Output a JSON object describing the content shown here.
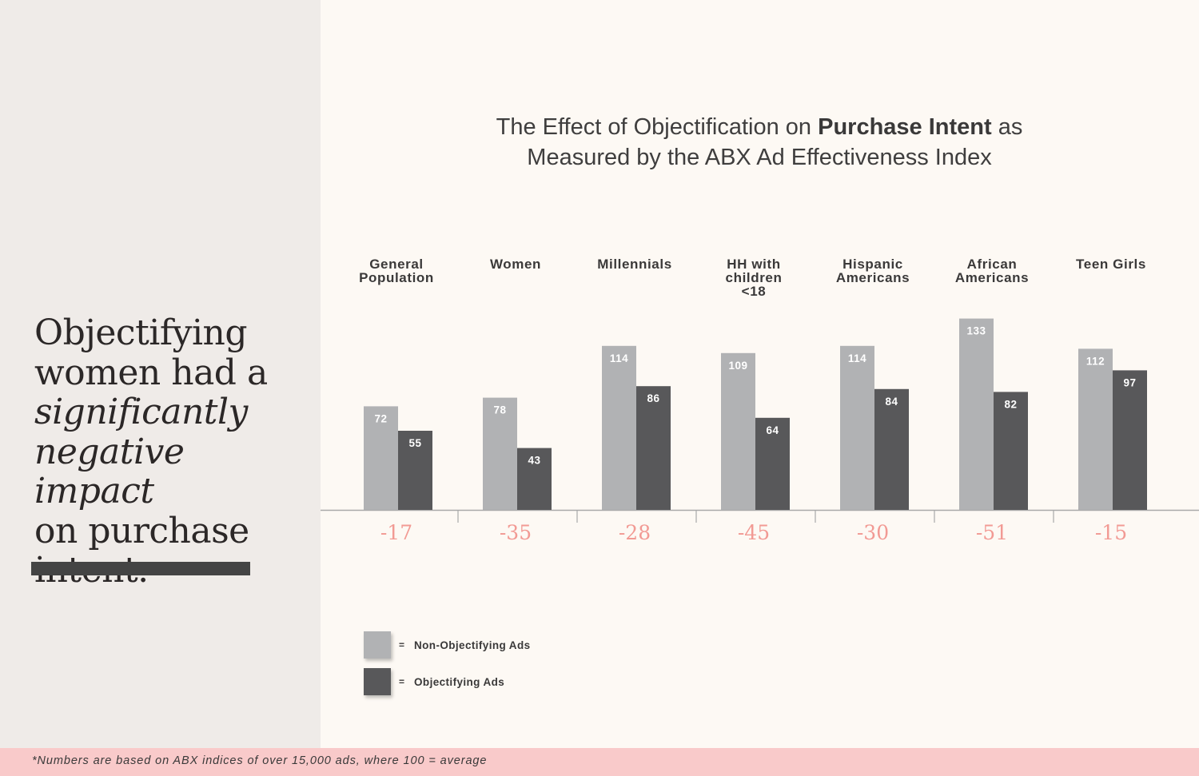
{
  "left_panel": {
    "headline_parts": [
      {
        "text": "Objectifying women had a ",
        "italic": false
      },
      {
        "text": "significantly negative impact",
        "italic": true
      },
      {
        "text": " on purchase intent.",
        "italic": false
      }
    ],
    "line1": "Objectifying",
    "line2": "women had a",
    "line3": "significantly",
    "line4": "negative impact",
    "line5": "on purchase",
    "line6": "intent."
  },
  "colors": {
    "non_objectifying": "#b1b2b4",
    "objectifying": "#58585a",
    "difference": "#f29a94",
    "axis": "#a9a9a9"
  },
  "chart_data": {
    "type": "bar",
    "title_line1_prefix": "The Effect of Objectification on ",
    "title_line1_bold": "Purchase Intent",
    "title_line1_suffix": " as",
    "title_line2": "Measured by the ABX Ad Effectiveness Index",
    "xlabel": "",
    "ylabel": "",
    "ylim": [
      0,
      140
    ],
    "grid": false,
    "categories": [
      [
        "General",
        "Population"
      ],
      [
        "Women"
      ],
      [
        "Millennials"
      ],
      [
        "HH with",
        "children",
        "<18"
      ],
      [
        "Hispanic",
        "Americans"
      ],
      [
        "African",
        "Americans"
      ],
      [
        "Teen Girls"
      ]
    ],
    "series": [
      {
        "name": "Non-Objectifying Ads",
        "values": [
          72,
          78,
          114,
          109,
          114,
          133,
          112
        ]
      },
      {
        "name": "Objectifying Ads",
        "values": [
          55,
          43,
          86,
          64,
          84,
          82,
          97
        ]
      }
    ],
    "differences": [
      "-17",
      "-35",
      "-28",
      "-45",
      "-30",
      "-51",
      "-15"
    ],
    "legend": {
      "position": "bottom-left",
      "equals": "=",
      "entries": [
        "Non-Objectifying Ads",
        "Objectifying Ads"
      ]
    }
  },
  "footer": {
    "note": "*Numbers are based on ABX indices of over 15,000 ads, where 100 = average"
  }
}
